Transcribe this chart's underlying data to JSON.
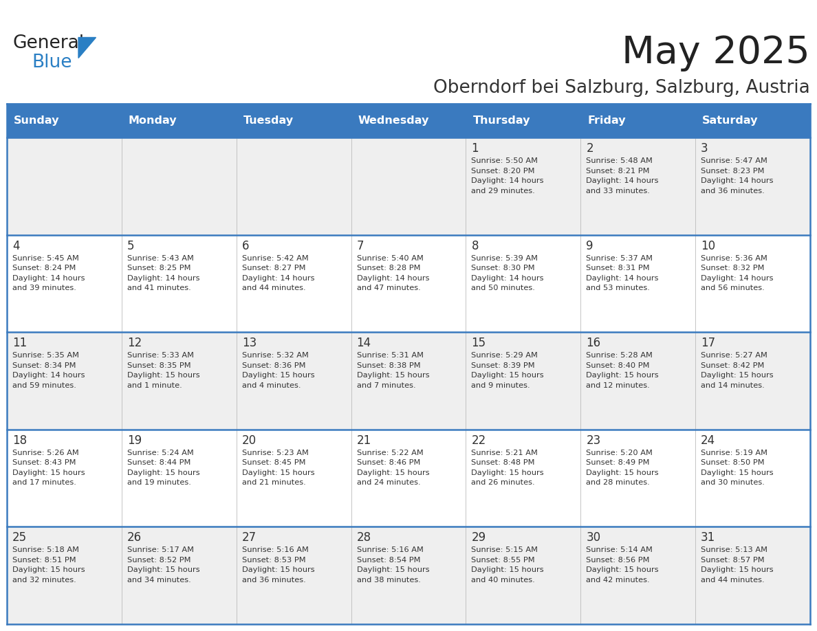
{
  "title": "May 2025",
  "subtitle": "Oberndorf bei Salzburg, Salzburg, Austria",
  "days_of_week": [
    "Sunday",
    "Monday",
    "Tuesday",
    "Wednesday",
    "Thursday",
    "Friday",
    "Saturday"
  ],
  "header_bg": "#3a7abf",
  "header_text": "#ffffff",
  "row_bg_even": "#efefef",
  "row_bg_odd": "#ffffff",
  "cell_text_color": "#333333",
  "day_number_color": "#333333",
  "grid_line_color": "#3a7abf",
  "title_color": "#222222",
  "subtitle_color": "#333333",
  "logo_general_color": "#222222",
  "logo_blue_color": "#2a7fc4",
  "calendar_data": [
    [
      {
        "day": "",
        "sunrise": "",
        "sunset": "",
        "daylight": ""
      },
      {
        "day": "",
        "sunrise": "",
        "sunset": "",
        "daylight": ""
      },
      {
        "day": "",
        "sunrise": "",
        "sunset": "",
        "daylight": ""
      },
      {
        "day": "",
        "sunrise": "",
        "sunset": "",
        "daylight": ""
      },
      {
        "day": "1",
        "sunrise": "5:50 AM",
        "sunset": "8:20 PM",
        "daylight": "14 hours and 29 minutes."
      },
      {
        "day": "2",
        "sunrise": "5:48 AM",
        "sunset": "8:21 PM",
        "daylight": "14 hours and 33 minutes."
      },
      {
        "day": "3",
        "sunrise": "5:47 AM",
        "sunset": "8:23 PM",
        "daylight": "14 hours and 36 minutes."
      }
    ],
    [
      {
        "day": "4",
        "sunrise": "5:45 AM",
        "sunset": "8:24 PM",
        "daylight": "14 hours and 39 minutes."
      },
      {
        "day": "5",
        "sunrise": "5:43 AM",
        "sunset": "8:25 PM",
        "daylight": "14 hours and 41 minutes."
      },
      {
        "day": "6",
        "sunrise": "5:42 AM",
        "sunset": "8:27 PM",
        "daylight": "14 hours and 44 minutes."
      },
      {
        "day": "7",
        "sunrise": "5:40 AM",
        "sunset": "8:28 PM",
        "daylight": "14 hours and 47 minutes."
      },
      {
        "day": "8",
        "sunrise": "5:39 AM",
        "sunset": "8:30 PM",
        "daylight": "14 hours and 50 minutes."
      },
      {
        "day": "9",
        "sunrise": "5:37 AM",
        "sunset": "8:31 PM",
        "daylight": "14 hours and 53 minutes."
      },
      {
        "day": "10",
        "sunrise": "5:36 AM",
        "sunset": "8:32 PM",
        "daylight": "14 hours and 56 minutes."
      }
    ],
    [
      {
        "day": "11",
        "sunrise": "5:35 AM",
        "sunset": "8:34 PM",
        "daylight": "14 hours and 59 minutes."
      },
      {
        "day": "12",
        "sunrise": "5:33 AM",
        "sunset": "8:35 PM",
        "daylight": "15 hours and 1 minute."
      },
      {
        "day": "13",
        "sunrise": "5:32 AM",
        "sunset": "8:36 PM",
        "daylight": "15 hours and 4 minutes."
      },
      {
        "day": "14",
        "sunrise": "5:31 AM",
        "sunset": "8:38 PM",
        "daylight": "15 hours and 7 minutes."
      },
      {
        "day": "15",
        "sunrise": "5:29 AM",
        "sunset": "8:39 PM",
        "daylight": "15 hours and 9 minutes."
      },
      {
        "day": "16",
        "sunrise": "5:28 AM",
        "sunset": "8:40 PM",
        "daylight": "15 hours and 12 minutes."
      },
      {
        "day": "17",
        "sunrise": "5:27 AM",
        "sunset": "8:42 PM",
        "daylight": "15 hours and 14 minutes."
      }
    ],
    [
      {
        "day": "18",
        "sunrise": "5:26 AM",
        "sunset": "8:43 PM",
        "daylight": "15 hours and 17 minutes."
      },
      {
        "day": "19",
        "sunrise": "5:24 AM",
        "sunset": "8:44 PM",
        "daylight": "15 hours and 19 minutes."
      },
      {
        "day": "20",
        "sunrise": "5:23 AM",
        "sunset": "8:45 PM",
        "daylight": "15 hours and 21 minutes."
      },
      {
        "day": "21",
        "sunrise": "5:22 AM",
        "sunset": "8:46 PM",
        "daylight": "15 hours and 24 minutes."
      },
      {
        "day": "22",
        "sunrise": "5:21 AM",
        "sunset": "8:48 PM",
        "daylight": "15 hours and 26 minutes."
      },
      {
        "day": "23",
        "sunrise": "5:20 AM",
        "sunset": "8:49 PM",
        "daylight": "15 hours and 28 minutes."
      },
      {
        "day": "24",
        "sunrise": "5:19 AM",
        "sunset": "8:50 PM",
        "daylight": "15 hours and 30 minutes."
      }
    ],
    [
      {
        "day": "25",
        "sunrise": "5:18 AM",
        "sunset": "8:51 PM",
        "daylight": "15 hours and 32 minutes."
      },
      {
        "day": "26",
        "sunrise": "5:17 AM",
        "sunset": "8:52 PM",
        "daylight": "15 hours and 34 minutes."
      },
      {
        "day": "27",
        "sunrise": "5:16 AM",
        "sunset": "8:53 PM",
        "daylight": "15 hours and 36 minutes."
      },
      {
        "day": "28",
        "sunrise": "5:16 AM",
        "sunset": "8:54 PM",
        "daylight": "15 hours and 38 minutes."
      },
      {
        "day": "29",
        "sunrise": "5:15 AM",
        "sunset": "8:55 PM",
        "daylight": "15 hours and 40 minutes."
      },
      {
        "day": "30",
        "sunrise": "5:14 AM",
        "sunset": "8:56 PM",
        "daylight": "15 hours and 42 minutes."
      },
      {
        "day": "31",
        "sunrise": "5:13 AM",
        "sunset": "8:57 PM",
        "daylight": "15 hours and 44 minutes."
      }
    ]
  ]
}
